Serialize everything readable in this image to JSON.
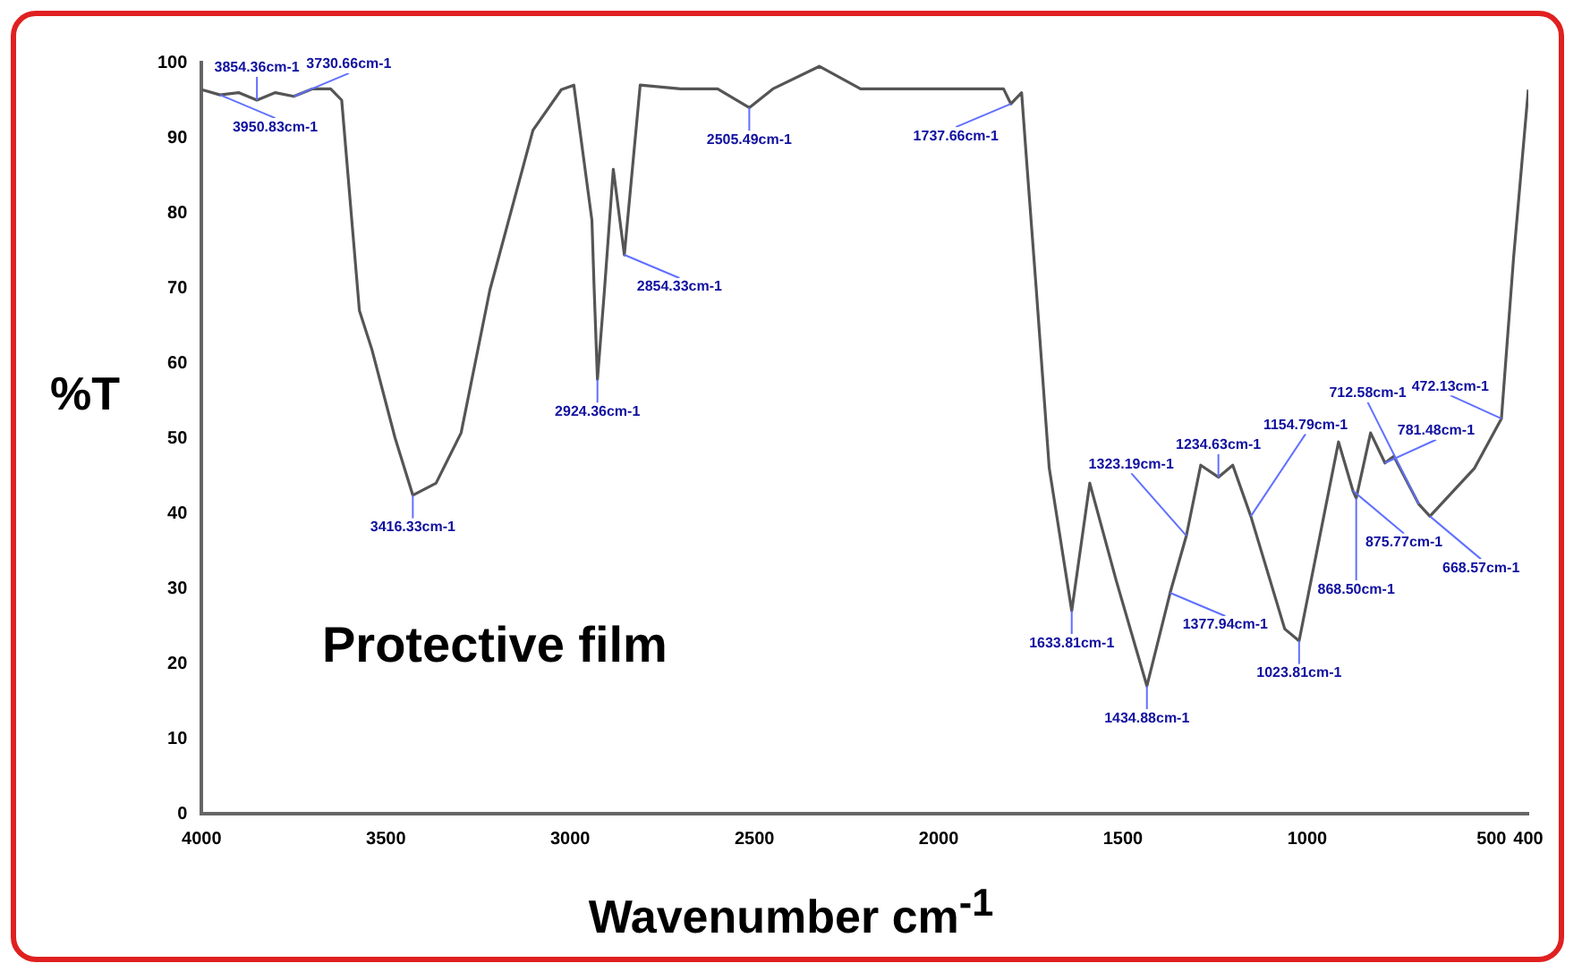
{
  "chart_data": {
    "type": "line",
    "xlabel": "Wavenumber cm$^{-1}$",
    "ylabel": "%T",
    "x": [
      4000,
      3950,
      3900,
      3850,
      3800,
      3750,
      3700,
      3650,
      3620,
      3572,
      3538,
      3475,
      3427,
      3364,
      3296,
      3218,
      3101,
      3024,
      2990,
      2941,
      2935,
      2926,
      2907,
      2883,
      2853,
      2810,
      2700,
      2600,
      2514,
      2450,
      2324,
      2212,
      2000,
      1824,
      1804,
      1775,
      1760,
      1735,
      1700,
      1639,
      1590,
      1518,
      1435,
      1372,
      1328,
      1289,
      1241,
      1202,
      1153,
      1061,
      1022,
      915,
      876,
      867,
      828,
      789,
      765,
      697,
      667,
      546,
      473,
      440,
      400
    ],
    "series": [
      {
        "color": "#555555",
        "values": [
          96.4,
          95.7,
          96,
          95,
          96,
          95.5,
          96.5,
          96.5,
          95,
          67,
          61.8,
          50,
          42.4,
          44,
          50.7,
          69.7,
          91,
          96.4,
          97,
          79,
          70,
          57.8,
          69.7,
          85.8,
          74.4,
          97,
          96.5,
          96.5,
          94,
          96.5,
          99.5,
          96.5,
          96.5,
          96.5,
          94.5,
          96,
          86,
          69.7,
          46,
          27,
          44,
          31,
          17,
          29.4,
          37,
          46.4,
          44.8,
          46.4,
          39.6,
          24.6,
          23,
          49.5,
          43,
          42,
          50.7,
          46.7,
          47.6,
          41.2,
          39.6,
          46,
          52.6,
          74,
          96.4
        ]
      }
    ],
    "xlim": [
      4000,
      400
    ],
    "xticks": [
      4000,
      3500,
      3000,
      2500,
      2000,
      1500,
      1000,
      500,
      400
    ],
    "ylim": [
      0,
      100
    ],
    "yticks": [
      0,
      10,
      20,
      30,
      40,
      50,
      60,
      70,
      80,
      90,
      100
    ],
    "grid": false,
    "legend": false,
    "marker": "none",
    "line_style": "solid",
    "annotations": [
      {
        "text": "3950.83cm-1",
        "x": 3950,
        "y": 95.7
      },
      {
        "text": "3854.36cm-1",
        "x": 3850,
        "y": 95
      },
      {
        "text": "3730.66cm-1",
        "x": 3750,
        "y": 95.5
      },
      {
        "text": "3416.33cm-1",
        "x": 3427,
        "y": 42.4
      },
      {
        "text": "2924.36cm-1",
        "x": 2926,
        "y": 57.8
      },
      {
        "text": "2854.33cm-1",
        "x": 2853,
        "y": 74.4
      },
      {
        "text": "2505.49cm-1",
        "x": 2514,
        "y": 94
      },
      {
        "text": "1737.66cm-1",
        "x": 1804,
        "y": 94.5
      },
      {
        "text": "1633.81cm-1",
        "x": 1639,
        "y": 27
      },
      {
        "text": "1434.88cm-1",
        "x": 1435,
        "y": 17
      },
      {
        "text": "1377.94cm-1",
        "x": 1372,
        "y": 29.4
      },
      {
        "text": "1323.19cm-1",
        "x": 1328,
        "y": 37
      },
      {
        "text": "1234.63cm-1",
        "x": 1241,
        "y": 44.8
      },
      {
        "text": "1154.79cm-1",
        "x": 1153,
        "y": 39.6
      },
      {
        "text": "1023.81cm-1",
        "x": 1022,
        "y": 23
      },
      {
        "text": "875.77cm-1",
        "x": 876,
        "y": 43
      },
      {
        "text": "868.50cm-1",
        "x": 867,
        "y": 42
      },
      {
        "text": "781.48cm-1",
        "x": 789,
        "y": 46.7
      },
      {
        "text": "712.58cm-1",
        "x": 697,
        "y": 41.2
      },
      {
        "text": "668.57cm-1",
        "x": 667,
        "y": 39.6
      },
      {
        "text": "472.13cm-1",
        "x": 473,
        "y": 52.6
      },
      "Protective film"
    ]
  }
}
